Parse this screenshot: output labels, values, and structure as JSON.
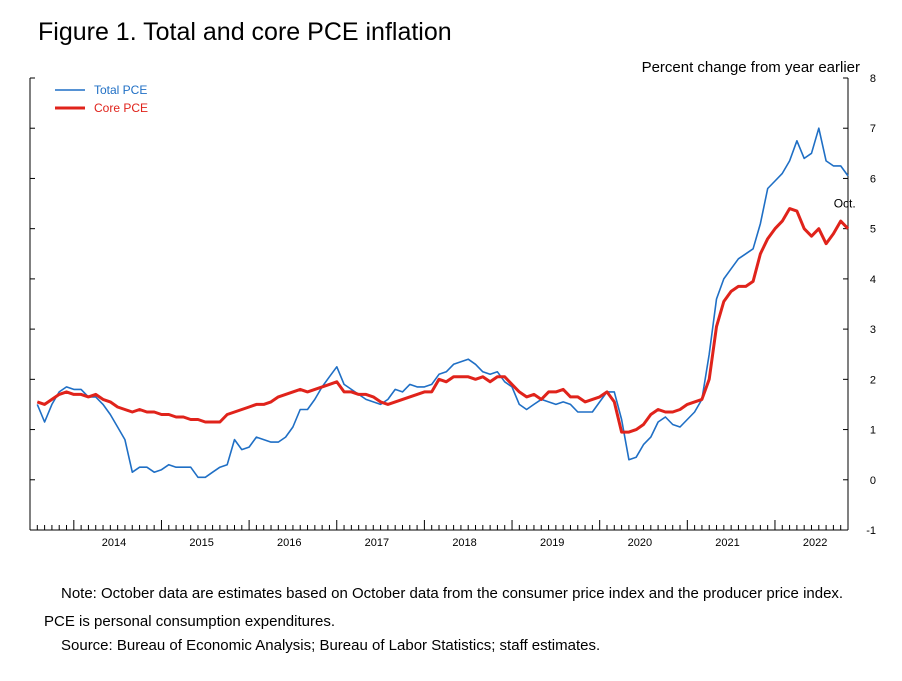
{
  "figure": {
    "title": "Figure 1. Total and core PCE inflation",
    "units_label": "Percent change from year earlier",
    "note": "Note: October data are estimates based on October data from the consumer price index and the producer price index. PCE is personal consumption expenditures.",
    "source": "Source: Bureau of Economic Analysis; Bureau of Labor Statistics; staff estimates."
  },
  "chart_data": {
    "type": "line",
    "title": "Figure 1. Total and core PCE inflation",
    "ylabel": "Percent change from year earlier",
    "xlabel": "",
    "x_start": "2013-08",
    "x_end": "2022-10",
    "xlim": [
      "2013-07",
      "2022-11"
    ],
    "ylim": [
      -1,
      8
    ],
    "yticks": [
      -1,
      0,
      1,
      2,
      3,
      4,
      5,
      6,
      7,
      8
    ],
    "xtick_labels": [
      "2014",
      "2015",
      "2016",
      "2017",
      "2018",
      "2019",
      "2020",
      "2021",
      "2022"
    ],
    "legend": {
      "position": "top-left"
    },
    "annotations": [
      {
        "text": "Oct.",
        "x": "2022-10",
        "y": 5.5
      }
    ],
    "colors": {
      "total": "#1f6fc5",
      "core": "#e0231b"
    },
    "series": [
      {
        "name": "Total PCE",
        "key": "total",
        "values": [
          1.5,
          1.15,
          1.5,
          1.75,
          1.85,
          1.8,
          1.8,
          1.65,
          1.65,
          1.5,
          1.3,
          1.05,
          0.8,
          0.15,
          0.25,
          0.25,
          0.15,
          0.2,
          0.3,
          0.25,
          0.25,
          0.25,
          0.05,
          0.05,
          0.15,
          0.25,
          0.3,
          0.8,
          0.6,
          0.65,
          0.85,
          0.8,
          0.75,
          0.75,
          0.85,
          1.05,
          1.4,
          1.4,
          1.6,
          1.85,
          2.05,
          2.25,
          1.9,
          1.8,
          1.7,
          1.6,
          1.55,
          1.5,
          1.6,
          1.8,
          1.75,
          1.9,
          1.85,
          1.85,
          1.9,
          2.1,
          2.15,
          2.3,
          2.35,
          2.4,
          2.3,
          2.15,
          2.1,
          2.15,
          1.95,
          1.85,
          1.5,
          1.4,
          1.5,
          1.6,
          1.55,
          1.5,
          1.55,
          1.5,
          1.35,
          1.35,
          1.35,
          1.55,
          1.75,
          1.75,
          1.2,
          0.4,
          0.45,
          0.7,
          0.85,
          1.15,
          1.25,
          1.1,
          1.05,
          1.2,
          1.35,
          1.6,
          2.5,
          3.6,
          4.0,
          4.2,
          4.4,
          4.5,
          4.6,
          5.1,
          5.8,
          5.95,
          6.1,
          6.35,
          6.75,
          6.4,
          6.5,
          7.0,
          6.35,
          6.25,
          6.25,
          6.05
        ]
      },
      {
        "name": "Core PCE",
        "key": "core",
        "values": [
          1.55,
          1.5,
          1.6,
          1.7,
          1.75,
          1.7,
          1.7,
          1.65,
          1.7,
          1.6,
          1.55,
          1.45,
          1.4,
          1.35,
          1.4,
          1.35,
          1.35,
          1.3,
          1.3,
          1.25,
          1.25,
          1.2,
          1.2,
          1.15,
          1.15,
          1.15,
          1.3,
          1.35,
          1.4,
          1.45,
          1.5,
          1.5,
          1.55,
          1.65,
          1.7,
          1.75,
          1.8,
          1.75,
          1.8,
          1.85,
          1.9,
          1.95,
          1.75,
          1.75,
          1.7,
          1.7,
          1.65,
          1.55,
          1.5,
          1.55,
          1.6,
          1.65,
          1.7,
          1.75,
          1.75,
          2.0,
          1.95,
          2.05,
          2.05,
          2.05,
          2.0,
          2.05,
          1.95,
          2.05,
          2.05,
          1.9,
          1.75,
          1.65,
          1.7,
          1.6,
          1.75,
          1.75,
          1.8,
          1.65,
          1.65,
          1.55,
          1.6,
          1.65,
          1.75,
          1.55,
          0.95,
          0.95,
          1.0,
          1.1,
          1.3,
          1.4,
          1.35,
          1.35,
          1.4,
          1.5,
          1.55,
          1.6,
          2.0,
          3.05,
          3.55,
          3.75,
          3.85,
          3.85,
          3.95,
          4.5,
          4.8,
          5.0,
          5.15,
          5.4,
          5.35,
          5.0,
          4.85,
          5.0,
          4.7,
          4.9,
          5.15,
          5.0
        ]
      }
    ]
  }
}
